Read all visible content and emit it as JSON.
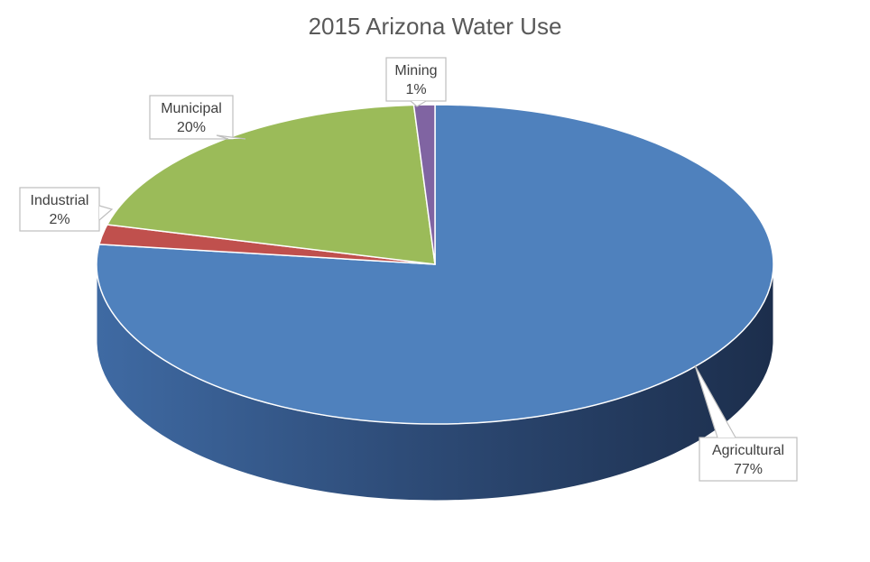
{
  "chart_data": {
    "type": "pie",
    "title": "2015 Arizona Water Use",
    "slices": [
      {
        "name": "Agricultural",
        "value": 77,
        "label": "77%",
        "color": "#4f81bd"
      },
      {
        "name": "Industrial",
        "value": 2,
        "label": "2%",
        "color": "#c0504d"
      },
      {
        "name": "Municipal",
        "value": 20,
        "label": "20%",
        "color": "#9bbb59"
      },
      {
        "name": "Mining",
        "value": 1,
        "label": "1%",
        "color": "#8064a2"
      }
    ]
  }
}
